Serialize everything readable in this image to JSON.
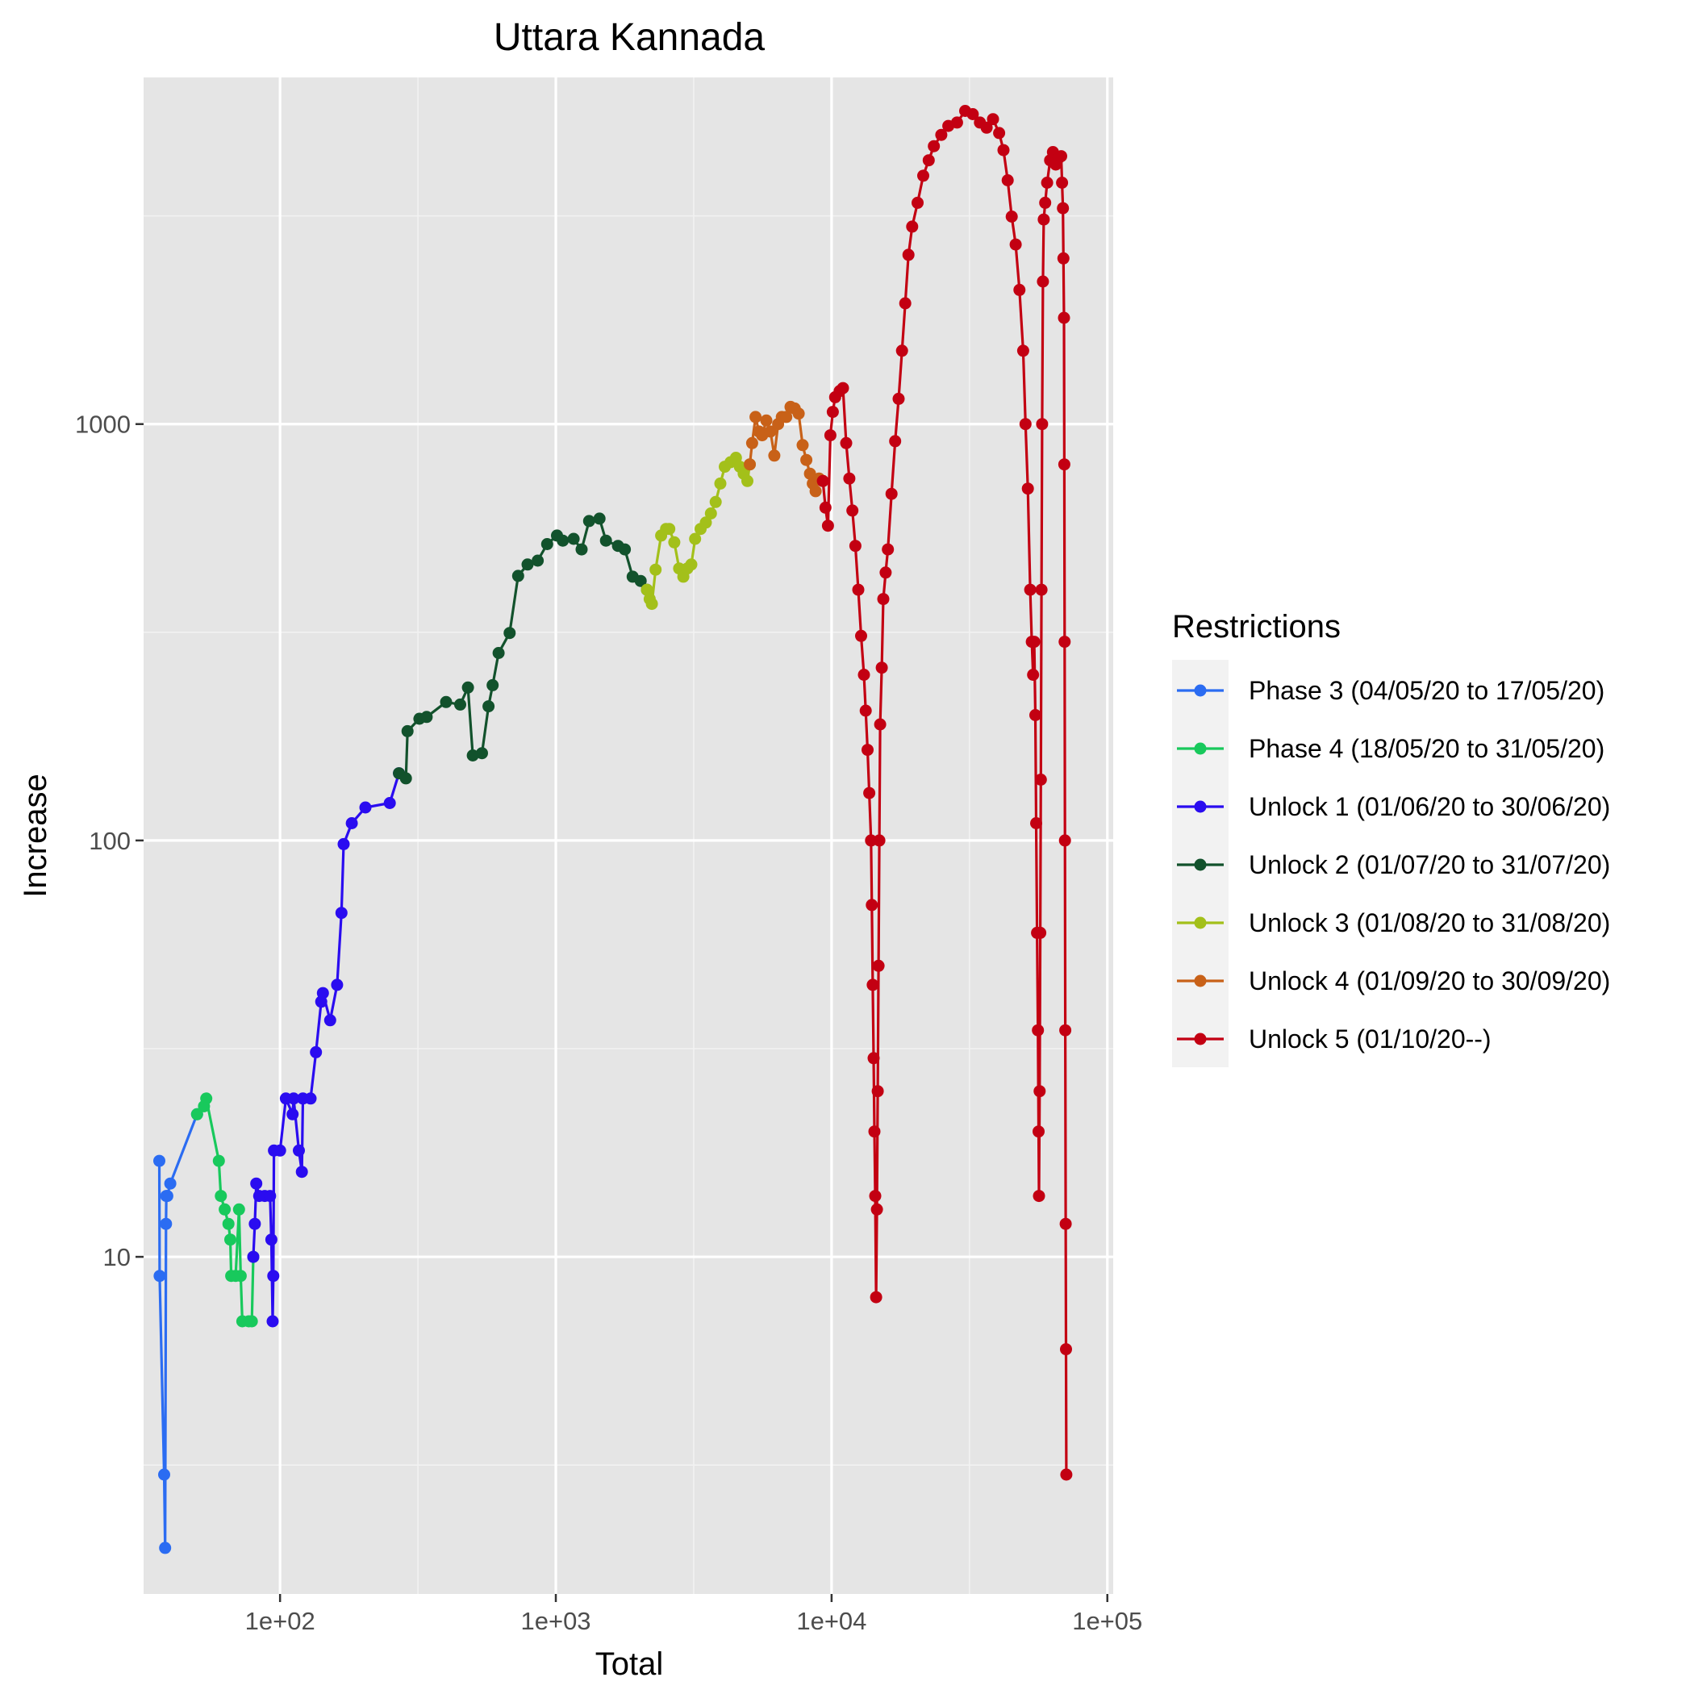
{
  "chart_data": {
    "type": "line",
    "title": "Uttara Kannada",
    "xlabel": "Total",
    "ylabel": "Increase",
    "x_scale": "log10",
    "y_scale": "log10",
    "xlim": [
      32,
      105000
    ],
    "ylim": [
      1.55,
      6800
    ],
    "x_ticks": [
      {
        "value": 100,
        "label": "1e+02"
      },
      {
        "value": 1000,
        "label": "1e+03"
      },
      {
        "value": 10000,
        "label": "1e+04"
      },
      {
        "value": 100000,
        "label": "1e+05"
      }
    ],
    "y_ticks": [
      {
        "value": 10,
        "label": "10"
      },
      {
        "value": 100,
        "label": "100"
      },
      {
        "value": 1000,
        "label": "1000"
      }
    ],
    "grid": true,
    "legend": {
      "title": "Restrictions",
      "position": "right"
    },
    "series": [
      {
        "name": "Phase 3 (04/05/20 to 17/05/20)",
        "color": "#2b6cf2",
        "points": [
          [
            36.5,
            17
          ],
          [
            36.6,
            9
          ],
          [
            38,
            3
          ],
          [
            38.3,
            2
          ],
          [
            38.6,
            12
          ],
          [
            38.7,
            14
          ],
          [
            39,
            14
          ],
          [
            40,
            15
          ],
          [
            50,
            22
          ]
        ]
      },
      {
        "name": "Phase 4 (18/05/20 to 31/05/20)",
        "color": "#18c95c",
        "points": [
          [
            50,
            22
          ],
          [
            53,
            23
          ],
          [
            54,
            24
          ],
          [
            60,
            17
          ],
          [
            61,
            14
          ],
          [
            63,
            13
          ],
          [
            65,
            12
          ],
          [
            66,
            11
          ],
          [
            66.5,
            9
          ],
          [
            69,
            9
          ],
          [
            71,
            13
          ],
          [
            72,
            9
          ],
          [
            73,
            7
          ],
          [
            77,
            7
          ],
          [
            79,
            7
          ],
          [
            80,
            10
          ]
        ]
      },
      {
        "name": "Unlock 1 (01/06/20 to 30/06/20)",
        "color": "#2a0cf0",
        "points": [
          [
            80,
            10
          ],
          [
            81,
            12
          ],
          [
            82,
            15
          ],
          [
            84,
            14
          ],
          [
            88,
            14
          ],
          [
            92,
            14
          ],
          [
            93,
            11
          ],
          [
            94,
            7
          ],
          [
            94.5,
            9
          ],
          [
            95,
            18
          ],
          [
            100,
            18
          ],
          [
            105,
            24
          ],
          [
            111,
            22
          ],
          [
            112,
            24
          ],
          [
            117,
            18
          ],
          [
            120,
            16
          ],
          [
            121,
            24
          ],
          [
            129,
            24
          ],
          [
            135,
            31
          ],
          [
            141,
            41
          ],
          [
            143,
            43
          ],
          [
            152,
            37
          ],
          [
            161,
            45
          ],
          [
            167,
            67
          ],
          [
            170,
            98
          ],
          [
            182,
            110
          ],
          [
            204,
            120
          ],
          [
            250,
            123
          ],
          [
            270,
            145
          ]
        ]
      },
      {
        "name": "Unlock 2 (01/07/20 to 31/07/20)",
        "color": "#12522c",
        "points": [
          [
            270,
            145
          ],
          [
            286,
            141
          ],
          [
            290,
            183
          ],
          [
            320,
            196
          ],
          [
            340,
            198
          ],
          [
            400,
            215
          ],
          [
            450,
            212
          ],
          [
            480,
            233
          ],
          [
            500,
            160
          ],
          [
            540,
            162
          ],
          [
            570,
            210
          ],
          [
            590,
            236
          ],
          [
            620,
            282
          ],
          [
            680,
            315
          ],
          [
            730,
            432
          ],
          [
            790,
            460
          ],
          [
            860,
            470
          ],
          [
            930,
            515
          ],
          [
            1010,
            540
          ],
          [
            1060,
            525
          ],
          [
            1160,
            530
          ],
          [
            1240,
            500
          ],
          [
            1320,
            585
          ],
          [
            1440,
            593
          ],
          [
            1520,
            525
          ],
          [
            1680,
            510
          ],
          [
            1780,
            500
          ],
          [
            1900,
            430
          ],
          [
            2030,
            420
          ],
          [
            2140,
            400
          ]
        ]
      },
      {
        "name": "Unlock 3 (01/08/20 to 31/08/20)",
        "color": "#a3c01a",
        "points": [
          [
            2140,
            400
          ],
          [
            2190,
            380
          ],
          [
            2230,
            370
          ],
          [
            2300,
            447
          ],
          [
            2410,
            540
          ],
          [
            2510,
            560
          ],
          [
            2580,
            560
          ],
          [
            2690,
            520
          ],
          [
            2800,
            450
          ],
          [
            2900,
            430
          ],
          [
            3000,
            450
          ],
          [
            3100,
            460
          ],
          [
            3200,
            530
          ],
          [
            3350,
            560
          ],
          [
            3500,
            580
          ],
          [
            3650,
            610
          ],
          [
            3800,
            650
          ],
          [
            3950,
            720
          ],
          [
            4100,
            790
          ],
          [
            4300,
            810
          ],
          [
            4500,
            830
          ],
          [
            4650,
            790
          ],
          [
            4800,
            760
          ],
          [
            4950,
            730
          ],
          [
            5050,
            800
          ]
        ]
      },
      {
        "name": "Unlock 4 (01/09/20 to 30/09/20)",
        "color": "#c86118",
        "points": [
          [
            5050,
            800
          ],
          [
            5150,
            900
          ],
          [
            5300,
            1040
          ],
          [
            5450,
            960
          ],
          [
            5600,
            940
          ],
          [
            5800,
            1020
          ],
          [
            6000,
            960
          ],
          [
            6200,
            840
          ],
          [
            6400,
            1000
          ],
          [
            6600,
            1040
          ],
          [
            6850,
            1040
          ],
          [
            7100,
            1100
          ],
          [
            7350,
            1090
          ],
          [
            7600,
            1060
          ],
          [
            7850,
            890
          ],
          [
            8100,
            820
          ],
          [
            8350,
            760
          ],
          [
            8550,
            720
          ],
          [
            8750,
            690
          ],
          [
            9000,
            740
          ],
          [
            9300,
            730
          ]
        ]
      },
      {
        "name": "Unlock 5 (01/10/20--)",
        "color": "#c30012",
        "points": [
          [
            9300,
            730
          ],
          [
            9500,
            630
          ],
          [
            9700,
            570
          ],
          [
            9900,
            940
          ],
          [
            10100,
            1070
          ],
          [
            10300,
            1160
          ],
          [
            10700,
            1200
          ],
          [
            11000,
            1220
          ],
          [
            11300,
            900
          ],
          [
            11600,
            740
          ],
          [
            11900,
            620
          ],
          [
            12200,
            510
          ],
          [
            12500,
            400
          ],
          [
            12800,
            310
          ],
          [
            13100,
            250
          ],
          [
            13300,
            205
          ],
          [
            13500,
            165
          ],
          [
            13700,
            130
          ],
          [
            13900,
            100
          ],
          [
            14000,
            70
          ],
          [
            14100,
            45
          ],
          [
            14200,
            30
          ],
          [
            14300,
            20
          ],
          [
            14400,
            14
          ],
          [
            14500,
            8
          ],
          [
            14600,
            13
          ],
          [
            14700,
            25
          ],
          [
            14800,
            50
          ],
          [
            14900,
            100
          ],
          [
            15000,
            190
          ],
          [
            15200,
            260
          ],
          [
            15400,
            380
          ],
          [
            15700,
            440
          ],
          [
            16000,
            500
          ],
          [
            16500,
            680
          ],
          [
            17000,
            910
          ],
          [
            17500,
            1150
          ],
          [
            18000,
            1500
          ],
          [
            18500,
            1950
          ],
          [
            19000,
            2550
          ],
          [
            19600,
            2980
          ],
          [
            20500,
            3400
          ],
          [
            21500,
            3950
          ],
          [
            22500,
            4300
          ],
          [
            23500,
            4650
          ],
          [
            25000,
            4950
          ],
          [
            26500,
            5200
          ],
          [
            28500,
            5300
          ],
          [
            30500,
            5650
          ],
          [
            32500,
            5550
          ],
          [
            34500,
            5300
          ],
          [
            36500,
            5150
          ],
          [
            38500,
            5400
          ],
          [
            40500,
            5000
          ],
          [
            42000,
            4550
          ],
          [
            43500,
            3850
          ],
          [
            45000,
            3150
          ],
          [
            46500,
            2700
          ],
          [
            48000,
            2100
          ],
          [
            49500,
            1500
          ],
          [
            50500,
            1000
          ],
          [
            51500,
            700
          ],
          [
            52500,
            400
          ],
          [
            53200,
            300
          ],
          [
            53800,
            250
          ],
          [
            54300,
            300
          ],
          [
            54800,
            200
          ],
          [
            55200,
            110
          ],
          [
            55600,
            60
          ],
          [
            56000,
            35
          ],
          [
            56300,
            20
          ],
          [
            56500,
            14
          ],
          [
            56800,
            25
          ],
          [
            57100,
            60
          ],
          [
            57400,
            140
          ],
          [
            57700,
            400
          ],
          [
            58000,
            1000
          ],
          [
            58400,
            2200
          ],
          [
            58800,
            3100
          ],
          [
            59500,
            3400
          ],
          [
            60500,
            3800
          ],
          [
            62000,
            4300
          ],
          [
            63500,
            4500
          ],
          [
            65000,
            4200
          ],
          [
            66500,
            4350
          ],
          [
            68000,
            4400
          ],
          [
            68500,
            3800
          ],
          [
            69000,
            3300
          ],
          [
            69300,
            2500
          ],
          [
            69600,
            1800
          ],
          [
            69800,
            800
          ],
          [
            70000,
            300
          ],
          [
            70200,
            100
          ],
          [
            70400,
            35
          ],
          [
            70600,
            12
          ],
          [
            70800,
            6
          ],
          [
            71000,
            3
          ]
        ]
      }
    ]
  }
}
